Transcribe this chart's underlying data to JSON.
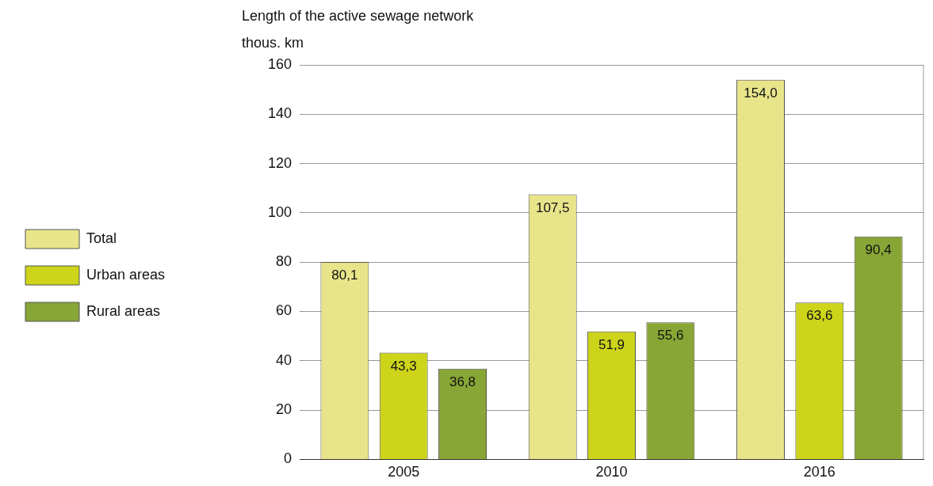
{
  "chart_data": {
    "type": "bar",
    "title": "Length of the active sewage network",
    "ylabel": "thous. km",
    "categories": [
      "2005",
      "2010",
      "2016"
    ],
    "series": [
      {
        "name": "Total",
        "color": "#e8e48a",
        "values": [
          80.1,
          107.5,
          154.0
        ],
        "value_labels": [
          "80,1",
          "107,5",
          "154,0"
        ]
      },
      {
        "name": "Urban areas",
        "color": "#cdd41a",
        "values": [
          43.3,
          51.9,
          63.6
        ],
        "value_labels": [
          "43,3",
          "51,9",
          "63,6"
        ]
      },
      {
        "name": "Rural areas",
        "color": "#88a636",
        "values": [
          36.8,
          55.6,
          90.4
        ],
        "value_labels": [
          "36,8",
          "55,6",
          "90,4"
        ]
      }
    ],
    "ylim": [
      0,
      160
    ],
    "yticks": [
      0,
      20,
      40,
      60,
      80,
      100,
      120,
      140,
      160
    ],
    "grid": "y",
    "legend": "left"
  }
}
